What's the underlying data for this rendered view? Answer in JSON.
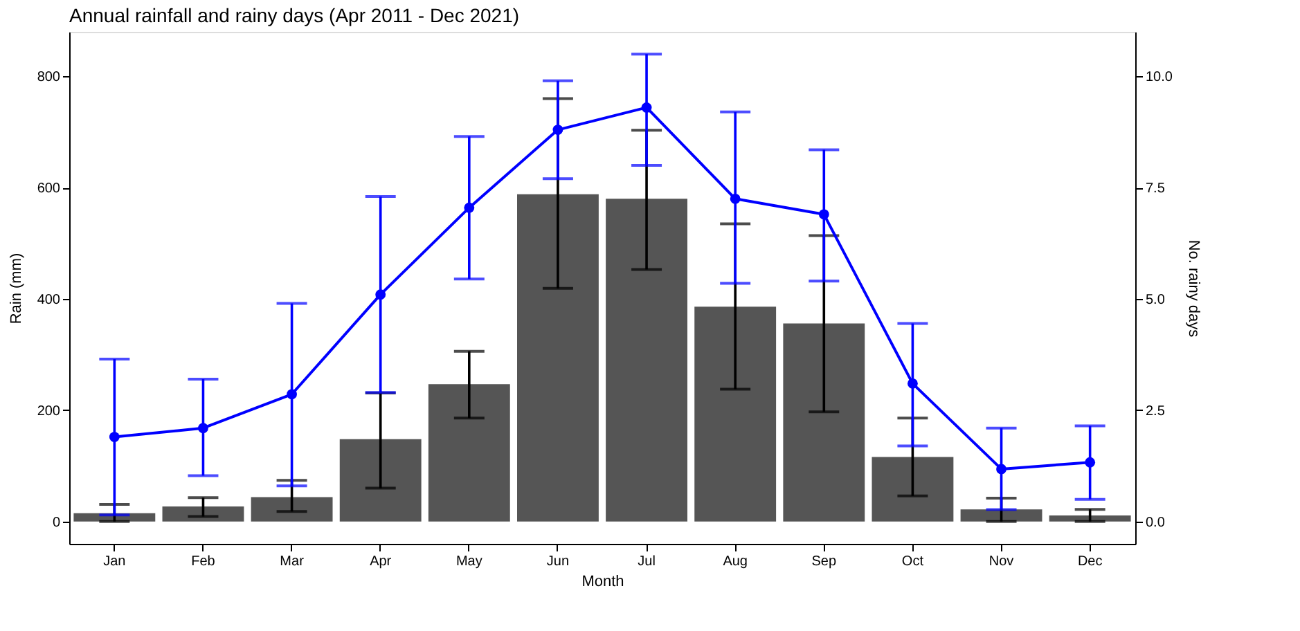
{
  "chart_data": {
    "type": "bar",
    "title": "Annual rainfall and rainy days (Apr 2011 - Dec 2021)",
    "xlabel": "Month",
    "ylabel": "Rain (mm)",
    "y2label": "No. rainy days",
    "categories": [
      "Jan",
      "Feb",
      "Mar",
      "Apr",
      "May",
      "Jun",
      "Jul",
      "Aug",
      "Sep",
      "Oct",
      "Nov",
      "Dec"
    ],
    "series": [
      {
        "color": "#555555",
        "values": [
          15,
          27,
          44,
          148,
          247,
          588,
          580,
          386,
          356,
          116,
          22,
          11
        ],
        "errors": [
          [
            0,
            31
          ],
          [
            9,
            43
          ],
          [
            18,
            74
          ],
          [
            60,
            231
          ],
          [
            186,
            306
          ],
          [
            419,
            760
          ],
          [
            453,
            703
          ],
          [
            238,
            535
          ],
          [
            197,
            514
          ],
          [
            46,
            186
          ],
          [
            0,
            42
          ],
          [
            0,
            22
          ]
        ]
      },
      {
        "type": "line",
        "axis": "y2",
        "color": "#0000ff",
        "values": [
          1.9,
          2.1,
          2.86,
          5.1,
          7.05,
          8.8,
          9.3,
          7.25,
          6.9,
          3.1,
          1.18,
          1.33
        ],
        "errors": [
          [
            0.15,
            3.65
          ],
          [
            1.03,
            3.2
          ],
          [
            0.8,
            4.9
          ],
          [
            2.9,
            7.3
          ],
          [
            5.45,
            8.65
          ],
          [
            7.7,
            9.9
          ],
          [
            8.0,
            10.5
          ],
          [
            5.35,
            9.2
          ],
          [
            5.4,
            8.35
          ],
          [
            1.7,
            4.45
          ],
          [
            0.27,
            2.1
          ],
          [
            0.5,
            2.15
          ]
        ]
      }
    ],
    "ylim": [
      -40,
      880
    ],
    "yticks": [
      0,
      200,
      400,
      600,
      800
    ],
    "y2lim": [
      -0.5,
      11
    ],
    "y2ticks": [
      {
        "value": 0,
        "label": "0.0"
      },
      {
        "value": 2.5,
        "label": "2.5"
      },
      {
        "value": 5,
        "label": "5.0"
      },
      {
        "value": 7.5,
        "label": "7.5"
      },
      {
        "value": 10,
        "label": "10.0"
      }
    ],
    "marker": "circle",
    "line_style": "solid",
    "grid": false
  }
}
